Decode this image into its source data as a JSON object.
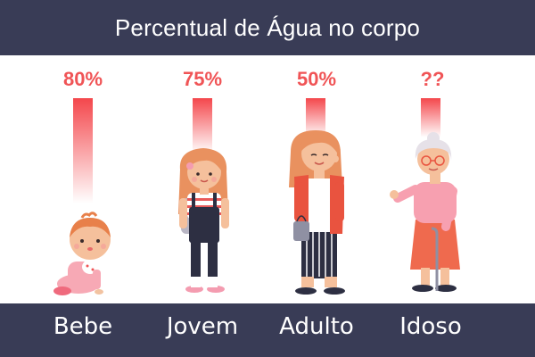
{
  "header": {
    "title": "Percentual de Água no corpo"
  },
  "colors": {
    "header_bg": "#393c56",
    "accent": "#f05456"
  },
  "groups": [
    {
      "name": "Bebe",
      "value_label": "80%",
      "bar_fill": 0.8
    },
    {
      "name": "Jovem",
      "value_label": "75%",
      "bar_fill": 0.75
    },
    {
      "name": "Adulto",
      "value_label": "50%",
      "bar_fill": 0.5
    },
    {
      "name": "Idoso",
      "value_label": "??",
      "bar_fill": 0.4
    }
  ]
}
